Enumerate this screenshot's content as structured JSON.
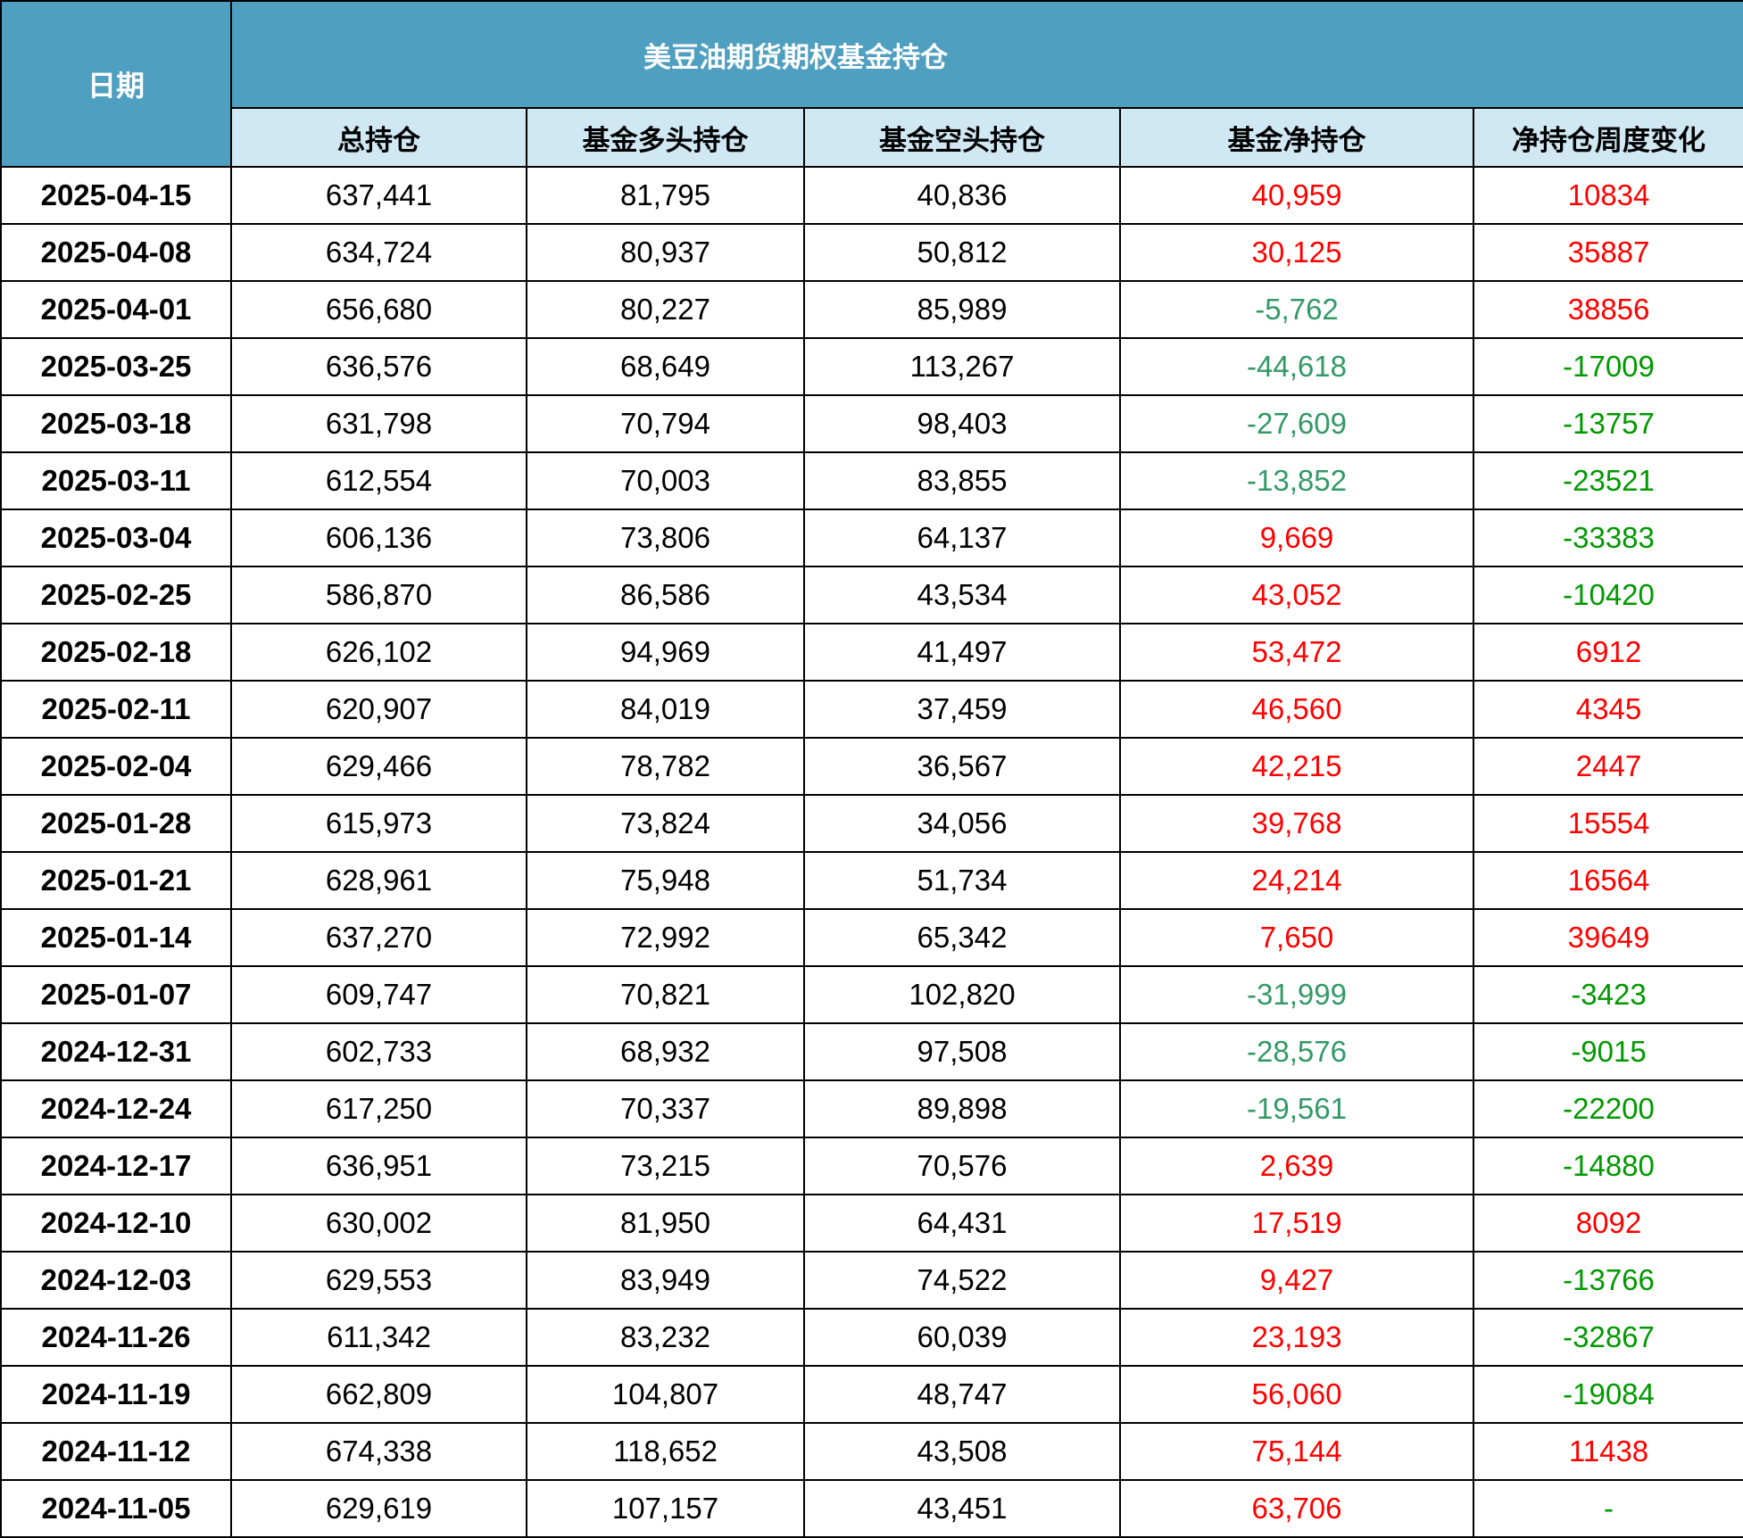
{
  "title": "美豆油期货期权基金持仓",
  "date_header": "日期",
  "columns": [
    "总持仓",
    "基金多头持仓",
    "基金空头持仓",
    "基金净持仓",
    "净持仓周度变化"
  ],
  "colors": {
    "header_bg": "#4f9fc0",
    "subheader_bg": "#cfe8f3",
    "positive": "#ff0000",
    "net_negative": "#339966",
    "change_negative": "#009900",
    "border": "#000000"
  },
  "rows": [
    {
      "date": "2025-04-15",
      "total": "637,441",
      "long": "81,795",
      "short": "40,836",
      "net": "40,959",
      "change": "10834"
    },
    {
      "date": "2025-04-08",
      "total": "634,724",
      "long": "80,937",
      "short": "50,812",
      "net": "30,125",
      "change": "35887"
    },
    {
      "date": "2025-04-01",
      "total": "656,680",
      "long": "80,227",
      "short": "85,989",
      "net": "-5,762",
      "change": "38856"
    },
    {
      "date": "2025-03-25",
      "total": "636,576",
      "long": "68,649",
      "short": "113,267",
      "net": "-44,618",
      "change": "-17009"
    },
    {
      "date": "2025-03-18",
      "total": "631,798",
      "long": "70,794",
      "short": "98,403",
      "net": "-27,609",
      "change": "-13757"
    },
    {
      "date": "2025-03-11",
      "total": "612,554",
      "long": "70,003",
      "short": "83,855",
      "net": "-13,852",
      "change": "-23521"
    },
    {
      "date": "2025-03-04",
      "total": "606,136",
      "long": "73,806",
      "short": "64,137",
      "net": "9,669",
      "change": "-33383"
    },
    {
      "date": "2025-02-25",
      "total": "586,870",
      "long": "86,586",
      "short": "43,534",
      "net": "43,052",
      "change": "-10420"
    },
    {
      "date": "2025-02-18",
      "total": "626,102",
      "long": "94,969",
      "short": "41,497",
      "net": "53,472",
      "change": "6912"
    },
    {
      "date": "2025-02-11",
      "total": "620,907",
      "long": "84,019",
      "short": "37,459",
      "net": "46,560",
      "change": "4345"
    },
    {
      "date": "2025-02-04",
      "total": "629,466",
      "long": "78,782",
      "short": "36,567",
      "net": "42,215",
      "change": "2447"
    },
    {
      "date": "2025-01-28",
      "total": "615,973",
      "long": "73,824",
      "short": "34,056",
      "net": "39,768",
      "change": "15554"
    },
    {
      "date": "2025-01-21",
      "total": "628,961",
      "long": "75,948",
      "short": "51,734",
      "net": "24,214",
      "change": "16564"
    },
    {
      "date": "2025-01-14",
      "total": "637,270",
      "long": "72,992",
      "short": "65,342",
      "net": "7,650",
      "change": "39649"
    },
    {
      "date": "2025-01-07",
      "total": "609,747",
      "long": "70,821",
      "short": "102,820",
      "net": "-31,999",
      "change": "-3423"
    },
    {
      "date": "2024-12-31",
      "total": "602,733",
      "long": "68,932",
      "short": "97,508",
      "net": "-28,576",
      "change": "-9015"
    },
    {
      "date": "2024-12-24",
      "total": "617,250",
      "long": "70,337",
      "short": "89,898",
      "net": "-19,561",
      "change": "-22200"
    },
    {
      "date": "2024-12-17",
      "total": "636,951",
      "long": "73,215",
      "short": "70,576",
      "net": "2,639",
      "change": "-14880"
    },
    {
      "date": "2024-12-10",
      "total": "630,002",
      "long": "81,950",
      "short": "64,431",
      "net": "17,519",
      "change": "8092"
    },
    {
      "date": "2024-12-03",
      "total": "629,553",
      "long": "83,949",
      "short": "74,522",
      "net": "9,427",
      "change": "-13766"
    },
    {
      "date": "2024-11-26",
      "total": "611,342",
      "long": "83,232",
      "short": "60,039",
      "net": "23,193",
      "change": "-32867"
    },
    {
      "date": "2024-11-19",
      "total": "662,809",
      "long": "104,807",
      "short": "48,747",
      "net": "56,060",
      "change": "-19084"
    },
    {
      "date": "2024-11-12",
      "total": "674,338",
      "long": "118,652",
      "short": "43,508",
      "net": "75,144",
      "change": "11438"
    },
    {
      "date": "2024-11-05",
      "total": "629,619",
      "long": "107,157",
      "short": "43,451",
      "net": "63,706",
      "change": "-"
    }
  ]
}
